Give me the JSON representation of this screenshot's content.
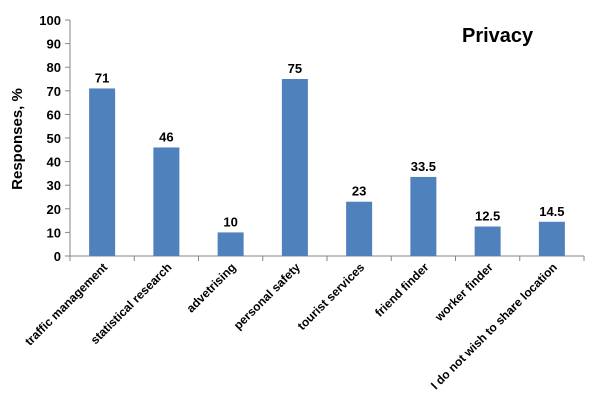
{
  "chart_data": {
    "type": "bar",
    "title": "Privacy",
    "xlabel": "",
    "ylabel": "Responses, %",
    "ylim": [
      0,
      100
    ],
    "yticks": [
      0,
      10,
      20,
      30,
      40,
      50,
      60,
      70,
      80,
      90,
      100
    ],
    "categories": [
      "traffic management",
      "statistical research",
      "advetrising",
      "personal safety",
      "tourist services",
      "friend finder",
      "worker finder",
      "I do not wish to share location"
    ],
    "values": [
      71,
      46,
      10,
      75,
      23,
      33.5,
      12.5,
      14.5
    ],
    "data_labels": [
      "71",
      "46",
      "10",
      "75",
      "23",
      "33.5",
      "12.5",
      "14.5"
    ],
    "grid": false,
    "legend": "none",
    "bar_color": "#4F81BD"
  }
}
